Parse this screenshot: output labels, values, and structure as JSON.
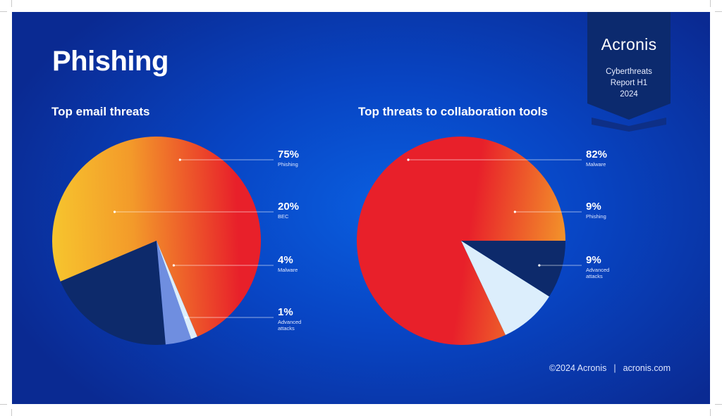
{
  "page": {
    "title": "Phishing",
    "brand": "Acronis",
    "report_lines": [
      "Cyberthreats",
      "Report H1",
      "2024"
    ],
    "footer_copyright": "©2024 Acronis",
    "footer_separator": "|",
    "footer_site": "acronis.com"
  },
  "colors": {
    "background": "#0845c4",
    "badge": "#0c2a6e",
    "red": "#e8202a",
    "orange": "#f39a2a",
    "yellow": "#f7c72e",
    "navy": "#0d2a6b",
    "light_blue": "#dceefc",
    "mid_blue": "#6f8ee0"
  },
  "chart_data": [
    {
      "type": "pie",
      "title": "Top email threats",
      "slices": [
        {
          "label_lines": [
            "Phishing"
          ],
          "value": 75,
          "value_text": "75%",
          "color": "#e8202a"
        },
        {
          "label_lines": [
            "BEC"
          ],
          "value": 20,
          "value_text": "20%",
          "color": "#0d2a6b"
        },
        {
          "label_lines": [
            "Malware"
          ],
          "value": 4,
          "value_text": "4%",
          "color": "#6f8ee0"
        },
        {
          "label_lines": [
            "Advanced",
            "attacks"
          ],
          "value": 1,
          "value_text": "1%",
          "color": "#dceefc"
        }
      ]
    },
    {
      "type": "pie",
      "title": "Top threats to collaboration tools",
      "slices": [
        {
          "label_lines": [
            "Malware"
          ],
          "value": 82,
          "value_text": "82%",
          "color": "#e8202a"
        },
        {
          "label_lines": [
            "Phishing"
          ],
          "value": 9,
          "value_text": "9%",
          "color": "#dceefc"
        },
        {
          "label_lines": [
            "Advanced",
            "attacks"
          ],
          "value": 9,
          "value_text": "9%",
          "color": "#0d2a6b"
        }
      ]
    }
  ]
}
